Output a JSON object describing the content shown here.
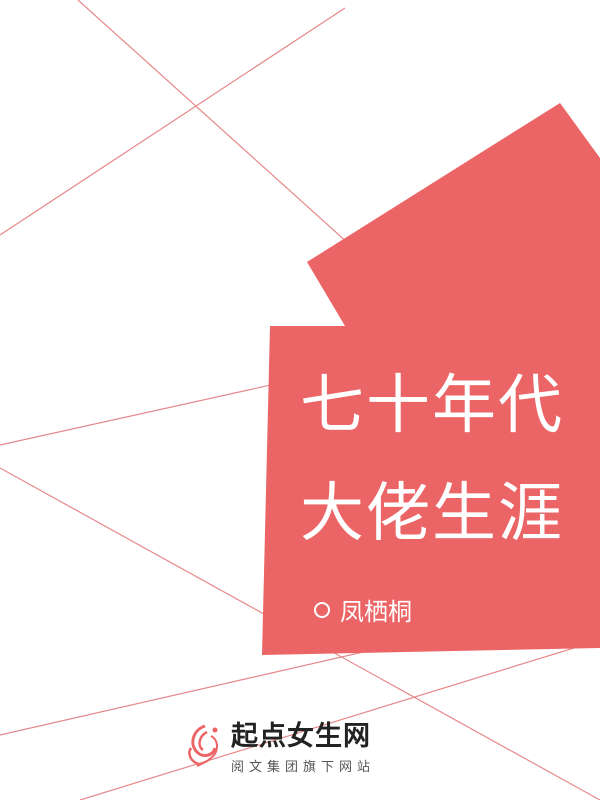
{
  "cover": {
    "title_line1": "七十年代",
    "title_line2": "大佬生涯",
    "author": "凤栖桐",
    "publisher_name": "起点女生网",
    "publisher_sub": "阅文集团旗下网站",
    "colors": {
      "accent": "#ec6566",
      "line": "#e5888a",
      "background": "#ffffff",
      "text_on_accent": "#ffffff"
    },
    "icons": [
      "circle-icon",
      "publisher-logo-icon"
    ]
  }
}
